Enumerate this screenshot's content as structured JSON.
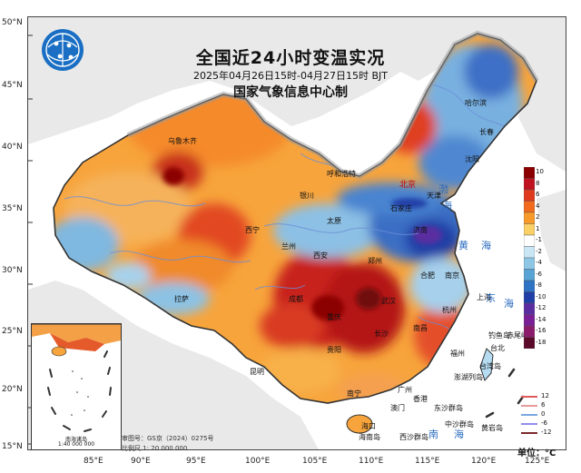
{
  "title": "全国近24小时变温实况",
  "subtitle": "2025年04月26日15时-04月27日15时 BJT",
  "agency": "国家气象信息中心制",
  "lat_labels": [
    "50°N",
    "45°N",
    "40°N",
    "35°N",
    "30°N",
    "25°N",
    "20°N",
    "15°N"
  ],
  "lon_labels": [
    "85°E",
    "90°E",
    "95°E",
    "100°E",
    "105°E",
    "110°E",
    "115°E",
    "120°E",
    "125°E"
  ],
  "cities": [
    {
      "name": "哈尔滨"
    },
    {
      "name": "长春"
    },
    {
      "name": "沈阳"
    },
    {
      "name": "乌鲁木齐"
    },
    {
      "name": "呼和浩特"
    },
    {
      "name": "北京"
    },
    {
      "name": "天津"
    },
    {
      "name": "银川"
    },
    {
      "name": "石家庄"
    },
    {
      "name": "太原"
    },
    {
      "name": "济南"
    },
    {
      "name": "西宁"
    },
    {
      "name": "兰州"
    },
    {
      "name": "西安"
    },
    {
      "name": "郑州"
    },
    {
      "name": "合肥"
    },
    {
      "name": "南京"
    },
    {
      "name": "上海"
    },
    {
      "name": "成都"
    },
    {
      "name": "拉萨"
    },
    {
      "name": "武汉"
    },
    {
      "name": "重庆"
    },
    {
      "name": "杭州"
    },
    {
      "name": "长沙"
    },
    {
      "name": "南昌"
    },
    {
      "name": "福州"
    },
    {
      "name": "贵阳"
    },
    {
      "name": "台北"
    },
    {
      "name": "昆明"
    },
    {
      "name": "南宁"
    },
    {
      "name": "广州"
    },
    {
      "name": "香港"
    },
    {
      "name": "澳门"
    },
    {
      "name": "海口"
    },
    {
      "name": "台湾岛"
    },
    {
      "name": "钓鱼岛"
    },
    {
      "name": "赤尾屿"
    },
    {
      "name": "东沙群岛"
    },
    {
      "name": "西沙群岛"
    },
    {
      "name": "海南岛"
    },
    {
      "name": "澎湖列岛"
    },
    {
      "name": "中沙群岛"
    },
    {
      "name": "黄岩岛"
    }
  ],
  "seas": [
    {
      "name": "渤"
    },
    {
      "name": "海"
    },
    {
      "name": "黄"
    },
    {
      "name": "海"
    },
    {
      "name": "东"
    },
    {
      "name": "海"
    },
    {
      "name": "南"
    },
    {
      "name": "海"
    }
  ],
  "inset": {
    "title": "南海诸岛",
    "scale": "1:40 000 000"
  },
  "approval": {
    "map_no": "审图号：GS京（2024）0275号",
    "scale": "比例尺 1: 20 000 000"
  },
  "colorbar": {
    "labels": [
      "10",
      "8",
      "6",
      "4",
      "2",
      "1",
      "-1",
      "-2",
      "-4",
      "-6",
      "-8",
      "-10",
      "-12",
      "-14",
      "-16",
      "-18"
    ],
    "colors": [
      "#8b0000",
      "#c1121f",
      "#e03a1e",
      "#f26b1d",
      "#f79a2a",
      "#fbd167",
      "#ffffff",
      "#c9e6f5",
      "#8ec7e6",
      "#59a4d6",
      "#2f73c4",
      "#2040a8",
      "#5a2ea0",
      "#7a1f95",
      "#8c1b6b",
      "#5c0a2a"
    ]
  },
  "diff_legend": {
    "items": [
      {
        "label": "12",
        "color": "#e05a5a"
      },
      {
        "label": "6",
        "color": "#e89a9a"
      },
      {
        "label": "0",
        "color": "#7aa7e0"
      },
      {
        "label": "-6",
        "color": "#8f8ff0"
      },
      {
        "label": "-12",
        "color": "#7a2a2a"
      }
    ]
  },
  "unit": "单位：°C"
}
